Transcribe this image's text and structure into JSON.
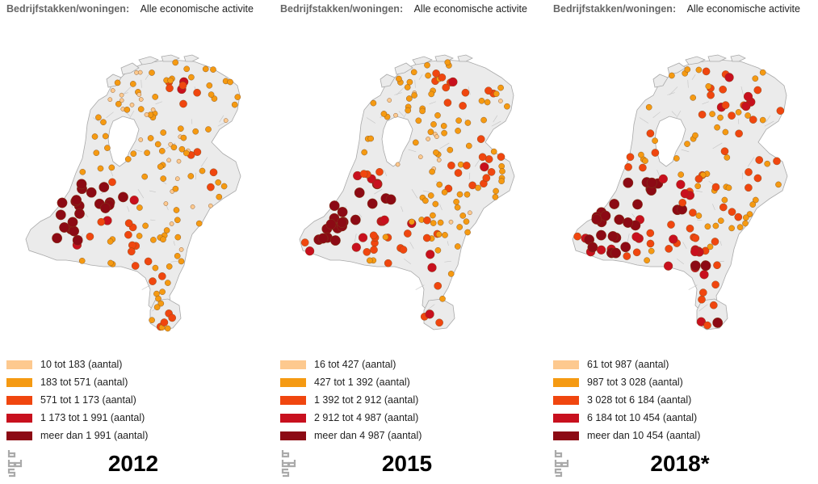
{
  "colors": {
    "class1": "#fdc98f",
    "class2": "#f59a12",
    "class3": "#f0460f",
    "class4": "#c8101e",
    "class5": "#8c0a14",
    "land_fill": "#ebebeb",
    "border": "#a9a9a9"
  },
  "panels": [
    {
      "header_label": "Bedrijfstakken/woningen:",
      "header_value": "Alle economische activite",
      "legend": [
        "10 tot 183 (aantal)",
        "183 tot 571 (aantal)",
        "571 tot 1 173 (aantal)",
        "1 173 tot 1 991 (aantal)",
        "meer dan 1 991 (aantal)"
      ],
      "year": "2012",
      "logo_icon": "cbs-logo-icon"
    },
    {
      "header_label": "Bedrijfstakken/woningen:",
      "header_value": "Alle economische activite",
      "legend": [
        "16 tot 427 (aantal)",
        "427 tot 1 392 (aantal)",
        "1 392 tot 2 912 (aantal)",
        "2 912 tot 4 987 (aantal)",
        "meer dan 4 987 (aantal)"
      ],
      "year": "2015",
      "logo_icon": "cbs-logo-icon"
    },
    {
      "header_label": "Bedrijfstakken/woningen:",
      "header_value": "Alle economische activite",
      "legend": [
        "61 tot 987 (aantal)",
        "987 tot 3 028 (aantal)",
        "3 028 tot 6 184 (aantal)",
        "6 184 tot 10 454 (aantal)",
        "meer dan 10 454 (aantal)"
      ],
      "year": "2018*",
      "logo_icon": "cbs-logo-icon"
    }
  ]
}
